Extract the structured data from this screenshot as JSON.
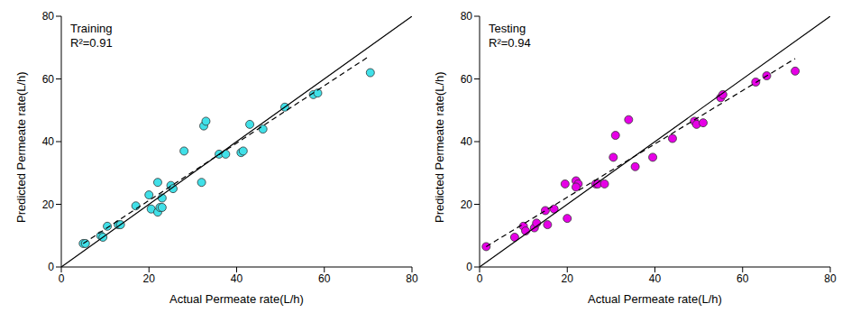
{
  "chart_data": [
    {
      "type": "scatter",
      "title": "Training",
      "annotation": "R²=0.91",
      "x_label": "Actual Permeate rate(L/h)",
      "y_label": "Predicted Permeate rate(L/h)",
      "xlim": [
        0,
        80
      ],
      "xticks": [
        0,
        20,
        40,
        60,
        80
      ],
      "ylim": [
        0,
        80
      ],
      "yticks": [
        0,
        20,
        40,
        60,
        80
      ],
      "series": [
        {
          "type": "scatter",
          "color": "#40e0e8",
          "marker": "circle",
          "x": [
            5,
            5.5,
            9,
            9.5,
            10.5,
            13,
            13.5,
            17,
            20,
            20.5,
            22,
            22,
            22.5,
            23,
            23,
            25,
            25.5,
            28,
            32,
            32.5,
            33,
            36,
            37.5,
            41,
            41.5,
            43,
            46,
            51,
            57.5,
            58.5,
            70.5
          ],
          "values": [
            7.5,
            7.5,
            10,
            9.5,
            13,
            13.5,
            13.5,
            19.5,
            23,
            18.5,
            27,
            17.5,
            19,
            22,
            19,
            26,
            25,
            37,
            27,
            45,
            46.5,
            36,
            36,
            36.5,
            37,
            45.5,
            44,
            51,
            55,
            55.5,
            62
          ]
        },
        {
          "type": "line",
          "color": "#000000",
          "line_style": "solid",
          "x": [
            0,
            80
          ],
          "values": [
            0,
            80
          ]
        },
        {
          "type": "line",
          "color": "#000000",
          "line_style": "dashed",
          "x": [
            5,
            70
          ],
          "values": [
            7.5,
            67
          ]
        }
      ]
    },
    {
      "type": "scatter",
      "title": "Testing",
      "annotation": "R²=0.94",
      "x_label": "Actual Permeate rate(L/h)",
      "y_label": "Predicted Permeate rate(L/h)",
      "xlim": [
        0,
        80
      ],
      "xticks": [
        0,
        20,
        40,
        60,
        80
      ],
      "ylim": [
        0,
        80
      ],
      "yticks": [
        0,
        20,
        40,
        60,
        80
      ],
      "series": [
        {
          "type": "scatter",
          "color": "#e600e6",
          "marker": "circle",
          "x": [
            1.5,
            8,
            10,
            10.5,
            12.5,
            13,
            15,
            15.5,
            17,
            19.5,
            20,
            22,
            22.5,
            22,
            26.5,
            27,
            28.5,
            30.5,
            31,
            34,
            35.5,
            39.5,
            44,
            49,
            49.5,
            51,
            55,
            55.5,
            63,
            65.5,
            72
          ],
          "values": [
            6.5,
            9.5,
            13,
            11.5,
            12.5,
            14,
            18,
            13.5,
            18.5,
            26.5,
            15.5,
            27.5,
            26.5,
            25.5,
            26.5,
            26.5,
            26.5,
            35,
            42,
            47,
            32,
            35,
            41,
            46.5,
            45.5,
            46,
            54,
            55,
            59,
            61,
            62.5
          ]
        },
        {
          "type": "line",
          "color": "#000000",
          "line_style": "solid",
          "x": [
            0,
            80
          ],
          "values": [
            0,
            80
          ]
        },
        {
          "type": "line",
          "color": "#000000",
          "line_style": "dashed",
          "x": [
            1.5,
            72
          ],
          "values": [
            6.5,
            66.5
          ]
        }
      ]
    }
  ]
}
